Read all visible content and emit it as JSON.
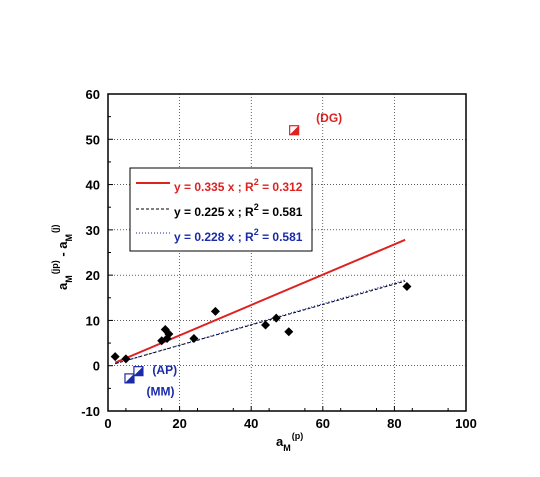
{
  "chart_data": {
    "type": "scatter",
    "xlim": [
      0,
      100
    ],
    "ylim": [
      -10,
      60
    ],
    "xticks": [
      0,
      20,
      40,
      60,
      80,
      100
    ],
    "yticks": [
      -10,
      0,
      10,
      20,
      30,
      40,
      50,
      60
    ],
    "grid": true,
    "legend_position": "upper-left inside plot",
    "xlabel": {
      "base": "a",
      "sub": "M",
      "sup": "(p)"
    },
    "ylabel": {
      "part1_base": "a",
      "part1_sub": "M",
      "part1_sup": "(jp)",
      "op": " - ",
      "part2_base": "a",
      "part2_sub": "M",
      "part2_sup": "(j)"
    },
    "series": [
      {
        "marker": "diamond",
        "color": "#000000",
        "points": [
          [
            2,
            2
          ],
          [
            5,
            1.5
          ],
          [
            15,
            5.5
          ],
          [
            16,
            8
          ],
          [
            16.5,
            6
          ],
          [
            17,
            7
          ],
          [
            24,
            6
          ],
          [
            30,
            12
          ],
          [
            44,
            9
          ],
          [
            47,
            10.5
          ],
          [
            50.5,
            7.5
          ],
          [
            83.5,
            17.5
          ]
        ]
      }
    ],
    "special_points": [
      {
        "label": "(DG)",
        "x": 52,
        "y": 52,
        "color": "#dd2222"
      },
      {
        "label": "(AP)",
        "x": 8.5,
        "y": -1.2,
        "color": "#1a2aa8"
      },
      {
        "label": "(MM)",
        "x": 6,
        "y": -2.8,
        "color": "#1a2aa8"
      }
    ],
    "fits": [
      {
        "slope": 0.335,
        "x_range": [
          2,
          83
        ],
        "color": "#dd2222",
        "style": "solid",
        "label_pre": "y = 0.335 x ; R",
        "label_sup": "2",
        "label_post": " = 0.312"
      },
      {
        "slope": 0.225,
        "x_range": [
          2,
          83
        ],
        "color": "#000000",
        "style": "dashed",
        "label_pre": "y = 0.225 x ; R",
        "label_sup": "2",
        "label_post": " = 0.581"
      },
      {
        "slope": 0.228,
        "x_range": [
          2,
          83
        ],
        "color": "#1a2aa8",
        "style": "dotted",
        "label_pre": "y = 0.228 x ; R",
        "label_sup": "2",
        "label_post": " = 0.581"
      }
    ]
  }
}
